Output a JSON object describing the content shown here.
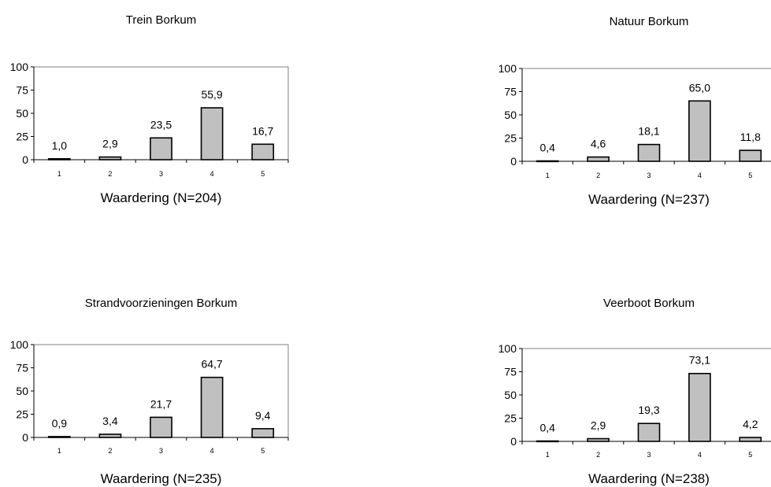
{
  "chart_data": [
    {
      "type": "bar",
      "title": "Trein Borkum",
      "xlabel": "Waardering  (N=204)",
      "ylabel": "",
      "categories": [
        "1",
        "2",
        "3",
        "4",
        "5"
      ],
      "values": [
        1.0,
        2.9,
        23.5,
        55.9,
        16.7
      ],
      "value_labels": [
        "1,0",
        "2,9",
        "23,5",
        "55,9",
        "16,7"
      ],
      "yticks": [
        "0",
        "25",
        "50",
        "75",
        "100"
      ],
      "ylim": [
        0,
        100
      ],
      "grid": false,
      "bar_color": "#c0c0c0"
    },
    {
      "type": "bar",
      "title": "Natuur Borkum",
      "xlabel": "Waardering  (N=237)",
      "ylabel": "",
      "categories": [
        "1",
        "2",
        "3",
        "4",
        "5"
      ],
      "values": [
        0.4,
        4.6,
        18.1,
        65.0,
        11.8
      ],
      "value_labels": [
        "0,4",
        "4,6",
        "18,1",
        "65,0",
        "11,8"
      ],
      "yticks": [
        "0",
        "25",
        "50",
        "75",
        "100"
      ],
      "ylim": [
        0,
        100
      ],
      "grid": false,
      "bar_color": "#c0c0c0"
    },
    {
      "type": "bar",
      "title": "Strandvoorzieningen Borkum",
      "xlabel": "Waardering  (N=235)",
      "ylabel": "",
      "categories": [
        "1",
        "2",
        "3",
        "4",
        "5"
      ],
      "values": [
        0.9,
        3.4,
        21.7,
        64.7,
        9.4
      ],
      "value_labels": [
        "0,9",
        "3,4",
        "21,7",
        "64,7",
        "9,4"
      ],
      "yticks": [
        "0",
        "25",
        "50",
        "75",
        "100"
      ],
      "ylim": [
        0,
        100
      ],
      "grid": false,
      "bar_color": "#c0c0c0"
    },
    {
      "type": "bar",
      "title": "Veerboot Borkum",
      "xlabel": "Waardering  (N=238)",
      "ylabel": "",
      "categories": [
        "1",
        "2",
        "3",
        "4",
        "5"
      ],
      "values": [
        0.4,
        2.9,
        19.3,
        73.1,
        4.2
      ],
      "value_labels": [
        "0,4",
        "2,9",
        "19,3",
        "73,1",
        "4,2"
      ],
      "yticks": [
        "0",
        "25",
        "50",
        "75",
        "100"
      ],
      "ylim": [
        0,
        100
      ],
      "grid": false,
      "bar_color": "#c0c0c0"
    }
  ]
}
